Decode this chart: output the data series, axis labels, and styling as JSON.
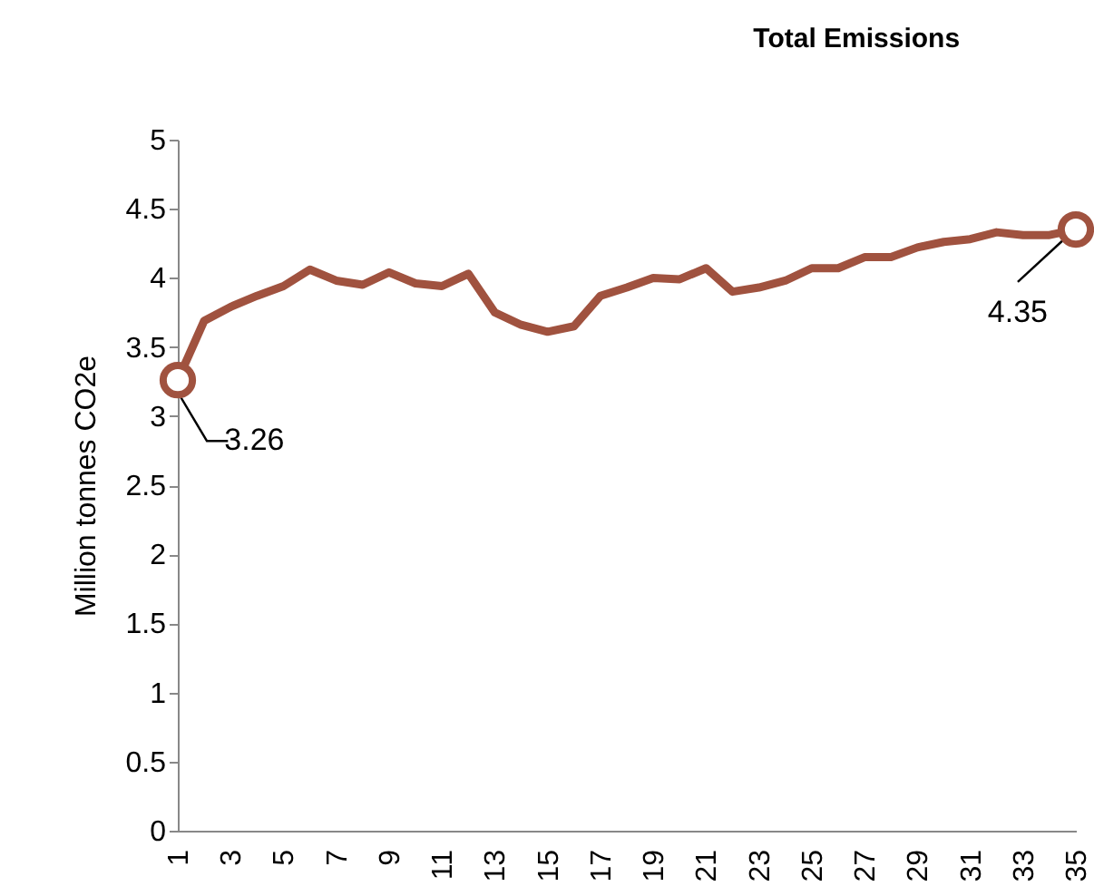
{
  "chart_data": {
    "type": "line",
    "title": "Total Emissions",
    "ylabel": "Million tonnes CO2e",
    "categories": [
      "1",
      null,
      "3",
      null,
      "5",
      null,
      "7",
      null,
      "9",
      null,
      "11",
      null,
      "13",
      null,
      "15",
      null,
      "17",
      null,
      "19",
      null,
      "21",
      null,
      "23",
      null,
      "25",
      null,
      "27",
      null,
      "29",
      null,
      "31",
      null,
      "33",
      null,
      "35"
    ],
    "series": [
      {
        "color": "#a0523f",
        "values": [
          3.26,
          3.69,
          3.79,
          3.87,
          3.94,
          4.06,
          3.98,
          3.95,
          4.04,
          3.96,
          3.94,
          4.03,
          3.75,
          3.66,
          3.61,
          3.65,
          3.87,
          3.93,
          4.0,
          3.99,
          4.07,
          3.9,
          3.93,
          3.98,
          4.07,
          4.07,
          4.15,
          4.15,
          4.22,
          4.26,
          4.28,
          4.33,
          4.31,
          4.31,
          4.35
        ],
        "value_labels": [
          "3.26",
          null,
          null,
          null,
          null,
          null,
          null,
          null,
          null,
          null,
          null,
          null,
          null,
          null,
          null,
          null,
          null,
          null,
          null,
          null,
          null,
          null,
          null,
          null,
          null,
          null,
          null,
          null,
          null,
          null,
          null,
          null,
          null,
          null,
          "4.35"
        ]
      }
    ],
    "ylim": [
      0,
      5
    ],
    "yticks": [
      0,
      0.5,
      1,
      1.5,
      2,
      2.5,
      3,
      3.5,
      4,
      4.5,
      5
    ],
    "grid": false,
    "marker": "none",
    "line_style": "solid"
  }
}
